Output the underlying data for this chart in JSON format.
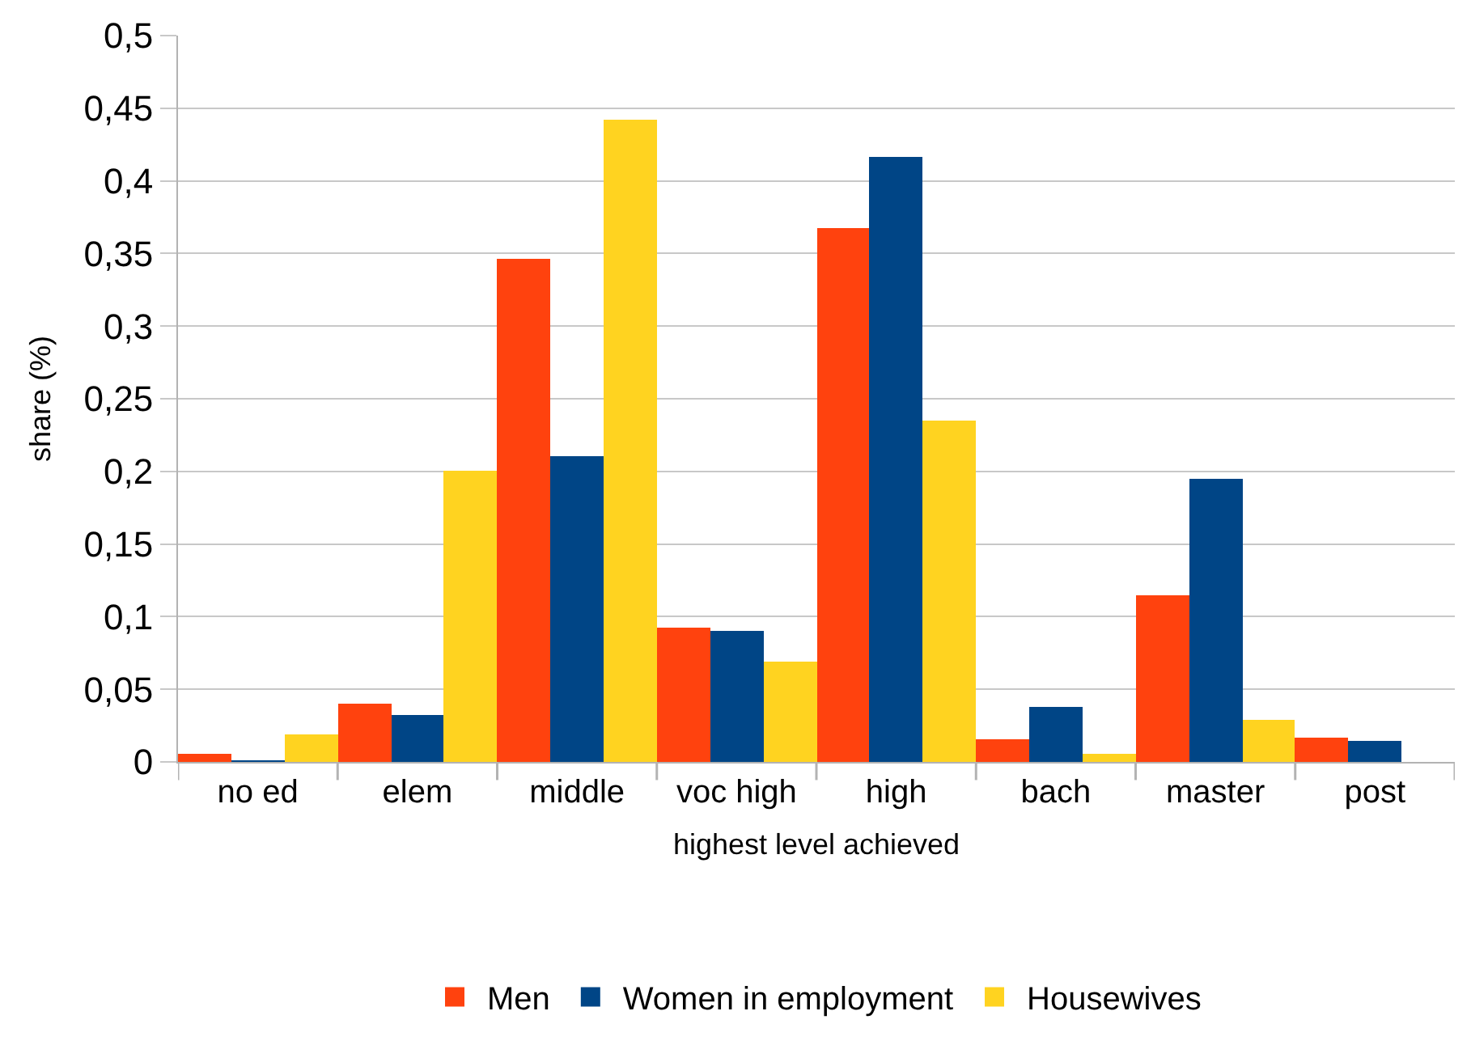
{
  "chart_data": {
    "type": "bar",
    "xlabel": "highest level achieved",
    "ylabel": "share (%)",
    "categories": [
      "no ed",
      "elem",
      "middle",
      "voc high",
      "high",
      "bach",
      "master",
      "post"
    ],
    "series": [
      {
        "name": "Men",
        "color": "#ff420e",
        "values": [
          0.006,
          0.04,
          0.346,
          0.092,
          0.367,
          0.016,
          0.115,
          0.017
        ]
      },
      {
        "name": "Women in employment",
        "color": "#004586",
        "values": [
          0.001,
          0.032,
          0.211,
          0.09,
          0.417,
          0.038,
          0.195,
          0.015
        ]
      },
      {
        "name": "Housewives",
        "color": "#ffd320",
        "values": [
          0.019,
          0.2,
          0.442,
          0.069,
          0.235,
          0.006,
          0.029,
          0
        ]
      }
    ],
    "ylim": [
      0,
      0.5
    ],
    "yticks": [
      0,
      {
        "value": 0.05,
        "label": "0,05"
      },
      {
        "value": 0.1,
        "label": "0,1"
      },
      {
        "value": 0.15,
        "label": "0,15"
      },
      {
        "value": 0.2,
        "label": "0,2"
      },
      {
        "value": 0.25,
        "label": "0,25"
      },
      {
        "value": 0.3,
        "label": "0,3"
      },
      {
        "value": 0.35,
        "label": "0,35"
      },
      {
        "value": 0.4,
        "label": "0,4"
      },
      {
        "value": 0.45,
        "label": "0,45"
      },
      {
        "value": 0.5,
        "label": "0,5"
      }
    ],
    "grid": "y",
    "legend": "bottom"
  }
}
